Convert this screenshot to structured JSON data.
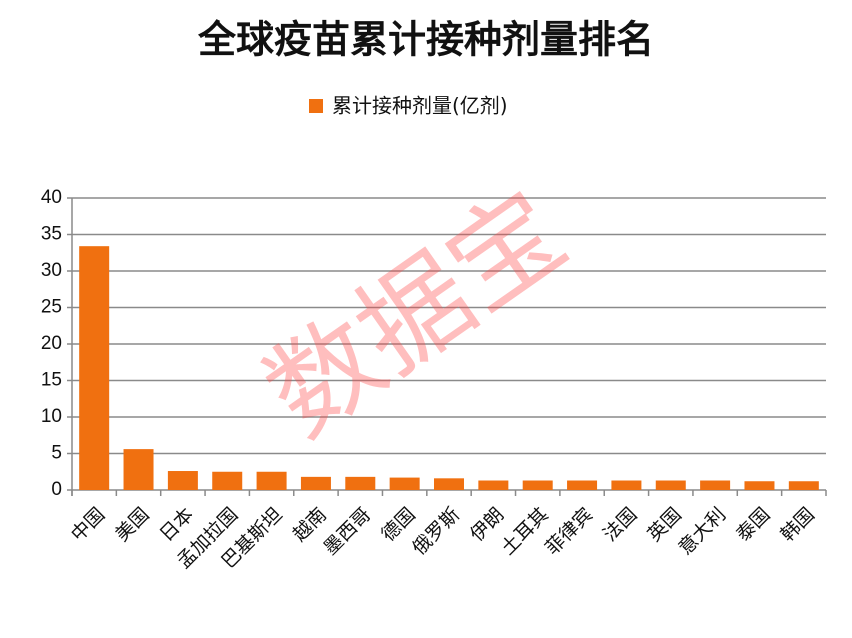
{
  "chart_data": {
    "type": "bar",
    "title": "全球疫苗累计接种剂量排名",
    "watermark": "数据宝",
    "categories": [
      "中国",
      "美国",
      "日本",
      "孟加拉国",
      "巴基斯坦",
      "越南",
      "墨西哥",
      "德国",
      "俄罗斯",
      "伊朗",
      "土耳其",
      "菲律宾",
      "法国",
      "英国",
      "意大利",
      "泰国",
      "韩国"
    ],
    "series": [
      {
        "name": "累计接种剂量(亿剂)",
        "color": "#f07010",
        "values": [
          33.4,
          5.6,
          2.6,
          2.5,
          2.5,
          1.8,
          1.8,
          1.7,
          1.6,
          1.3,
          1.3,
          1.3,
          1.3,
          1.3,
          1.3,
          1.2,
          1.2
        ]
      }
    ],
    "ylim": [
      0,
      40
    ],
    "yticks": [
      0,
      5,
      10,
      15,
      20,
      25,
      30,
      35,
      40
    ],
    "grid": true,
    "legend": "top"
  }
}
